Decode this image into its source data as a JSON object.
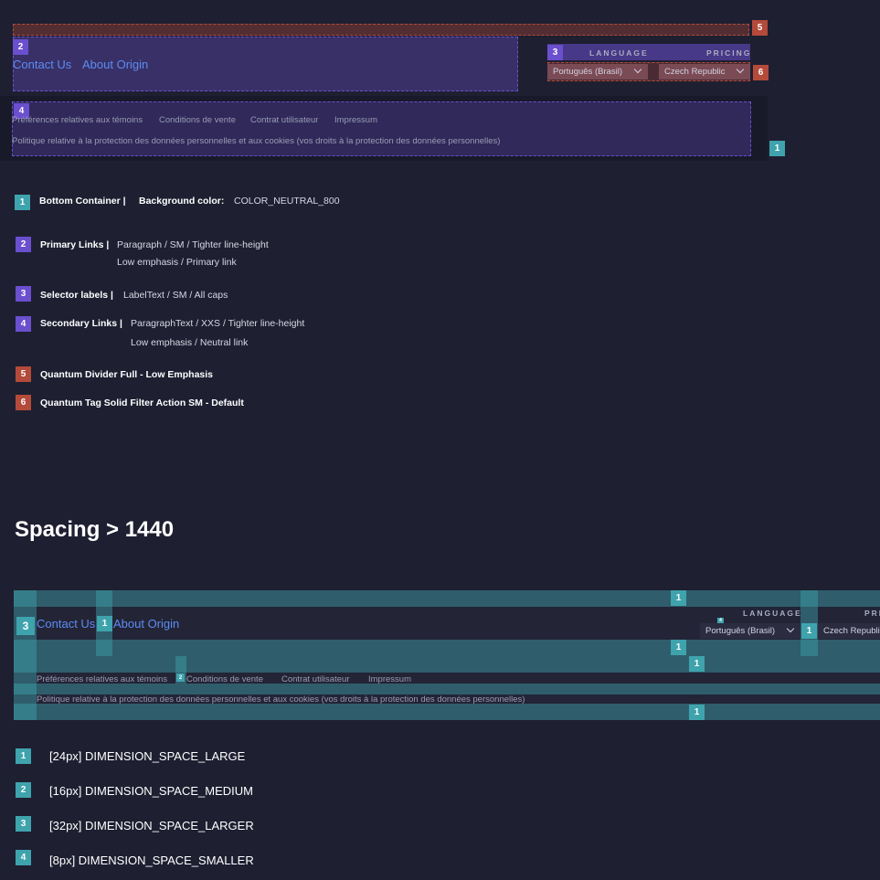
{
  "top": {
    "badge_numbers": {
      "b1": "1",
      "b2": "2",
      "b3": "3",
      "b4": "4",
      "b5": "5",
      "b6": "6"
    },
    "primary_links": [
      "Contact Us",
      "About Origin"
    ],
    "selector_labels": {
      "language": "LANGUAGE",
      "pricing": "PRICING"
    },
    "language_value": "Português (Brasil)",
    "pricing_value": "Czech Republic",
    "secondary_links": [
      "Préférences relatives aux témoins",
      "Conditions de vente",
      "Contrat utilisateur",
      "Impressum"
    ],
    "privacy_link": "Politique relative à la protection des données personnelles et aux cookies (vos droits à la protection des données personnelles)"
  },
  "legend": [
    {
      "num": "1",
      "title": "Bottom Container |",
      "sub": "Background color:",
      "text": "COLOR_NEUTRAL_800",
      "text2": ""
    },
    {
      "num": "2",
      "title": "Primary Links |",
      "sub": "",
      "text": "Paragraph / SM / Tighter line-height",
      "text2": "Low emphasis / Primary link"
    },
    {
      "num": "3",
      "title": "Selector labels |",
      "sub": "",
      "text": "LabelText / SM / All caps",
      "text2": ""
    },
    {
      "num": "4",
      "title": "Secondary Links |",
      "sub": "",
      "text": "ParagraphText / XXS / Tighter line-height",
      "text2": "Low emphasis / Neutral link"
    },
    {
      "num": "5",
      "title": "Quantum Divider Full - Low Emphasis",
      "sub": "",
      "text": "",
      "text2": ""
    },
    {
      "num": "6",
      "title": "Quantum Tag Solid Filter Action SM - Default",
      "sub": "",
      "text": "",
      "text2": ""
    }
  ],
  "spacing": {
    "heading": "Spacing > 1440",
    "primary_links": [
      "Contact Us",
      "About Origin"
    ],
    "language_label": "LANGUAGE",
    "pricing_label": "PRI",
    "language_value": "Português (Brasil)",
    "pricing_value": "Czech Republi",
    "secondary_links": [
      "Préférences relatives aux témoins",
      "Conditions de vente",
      "Contrat utilisateur",
      "Impressum"
    ],
    "privacy_link": "Politique relative à la protection des données personnelles et aux cookies (vos droits à la protection des données personnelles)",
    "marker_1": "1",
    "marker_2": "2",
    "marker_3": "3",
    "marker_4": "4",
    "legend": [
      {
        "num": "1",
        "text": "[24px] DIMENSION_SPACE_LARGE"
      },
      {
        "num": "2",
        "text": "[16px] DIMENSION_SPACE_MEDIUM"
      },
      {
        "num": "3",
        "text": "[32px] DIMENSION_SPACE_LARGER"
      },
      {
        "num": "4",
        "text": "[8px] DIMENSION_SPACE_SMALLER"
      }
    ]
  },
  "colors": {
    "background": "#1e1f31",
    "container": "#181929",
    "teal": "#3fa3ad",
    "purple": "#6a4fce",
    "red": "#b44a3a",
    "link": "#5d8cf2"
  }
}
